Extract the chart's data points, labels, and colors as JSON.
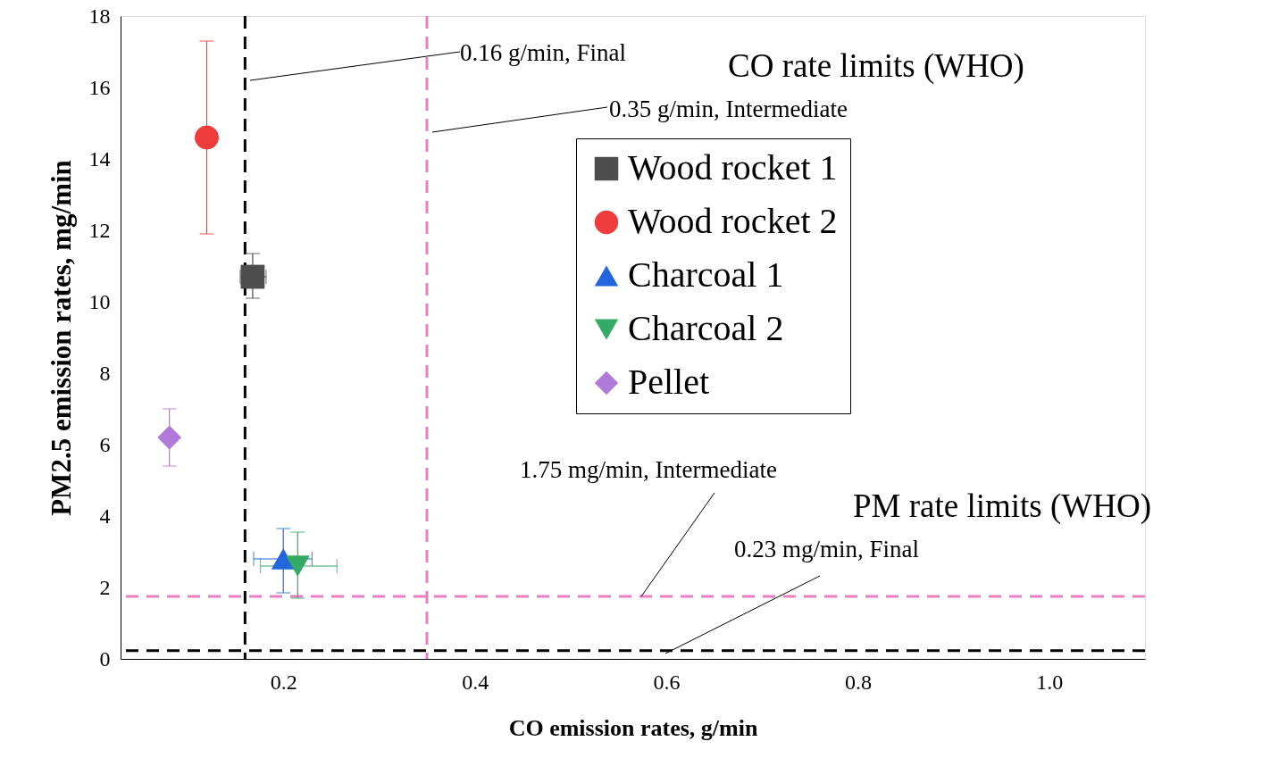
{
  "chart_data": {
    "type": "scatter",
    "xlabel": "CO emission rates, g/min",
    "ylabel": "PM2.5 emission rates, mg/min",
    "xlim": [
      0.03,
      1.1
    ],
    "ylim": [
      0,
      18
    ],
    "xticks": [
      0.2,
      0.4,
      0.6,
      0.8,
      {
        "value": 1.0,
        "label": "1.0"
      }
    ],
    "yticks": [
      0,
      2,
      4,
      6,
      8,
      10,
      12,
      14,
      16,
      18
    ],
    "grid": false,
    "legend": "top right",
    "series": [
      {
        "name": "Wood rocket 1",
        "color": "#4d4d4d",
        "marker": "square",
        "x": [
          0.168
        ],
        "values": [
          10.7
        ],
        "errors": [
          [
            10.1,
            11.35
          ]
        ],
        "xerrors": [
          [
            0.155,
            0.182
          ]
        ]
      },
      {
        "name": "Wood rocket 2",
        "color": "#f03c3c",
        "marker": "circle",
        "x": [
          0.12
        ],
        "values": [
          14.6
        ],
        "errors": [
          [
            11.9,
            17.3
          ]
        ],
        "xerrors": [
          null
        ]
      },
      {
        "name": "Charcoal 1",
        "color": "#2266dd",
        "marker": "triangle",
        "x": [
          0.2
        ],
        "values": [
          2.8
        ],
        "errors": [
          [
            1.85,
            3.65
          ]
        ],
        "xerrors": [
          [
            0.169,
            0.23
          ]
        ]
      },
      {
        "name": "Charcoal 2",
        "color": "#33aa66",
        "marker": "triangle-down",
        "x": [
          0.215
        ],
        "values": [
          2.6
        ],
        "errors": [
          [
            1.7,
            3.55
          ]
        ],
        "xerrors": [
          [
            0.176,
            0.256
          ]
        ]
      },
      {
        "name": "Pellet",
        "color": "#b07ad8",
        "marker": "diamond",
        "x": [
          0.081
        ],
        "values": [
          6.2
        ],
        "errors": [
          [
            5.4,
            7.0
          ]
        ],
        "xerrors": [
          null
        ]
      }
    ],
    "ref_lines": [
      {
        "axis": "x",
        "value": 0.16,
        "label": "0.16 g/min, Final",
        "color": "#000000",
        "line_style": "dashed"
      },
      {
        "axis": "x",
        "value": 0.35,
        "label": "0.35 g/min, Intermediate",
        "color": "#e87fc0",
        "line_style": "dashed"
      },
      {
        "axis": "y",
        "value": 1.75,
        "label": "1.75 mg/min, Intermediate",
        "color": "#e87fc0",
        "line_style": "dashed"
      },
      {
        "axis": "y",
        "value": 0.23,
        "label": "0.23 mg/min, Final",
        "color": "#000000",
        "line_style": "dashed"
      }
    ],
    "annotations": [
      "CO rate limits (WHO)",
      "PM rate limits (WHO)"
    ]
  }
}
